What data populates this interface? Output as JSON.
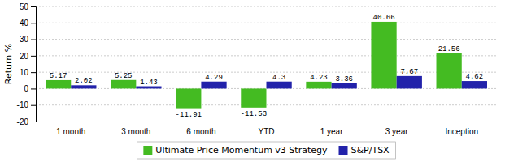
{
  "chart_data": {
    "type": "bar",
    "categories": [
      "1 month",
      "3 month",
      "6 month",
      "YTD",
      "1 year",
      "3 year",
      "Inception"
    ],
    "series": [
      {
        "name": "Ultimate Price Momentum v3 Strategy",
        "color": "#44bb22",
        "values": [
          5.17,
          5.25,
          -11.91,
          -11.53,
          4.23,
          40.66,
          21.56
        ]
      },
      {
        "name": "S&P/TSX",
        "color": "#2222aa",
        "values": [
          2.02,
          1.43,
          4.29,
          4.3,
          3.36,
          7.67,
          4.62
        ]
      }
    ],
    "ylim": [
      -20,
      50
    ],
    "yticks": [
      -20,
      -10,
      0,
      10,
      20,
      30,
      40,
      50
    ],
    "ylabel": "Return %",
    "grid": true,
    "legend": "bottom",
    "data_labels": true
  }
}
